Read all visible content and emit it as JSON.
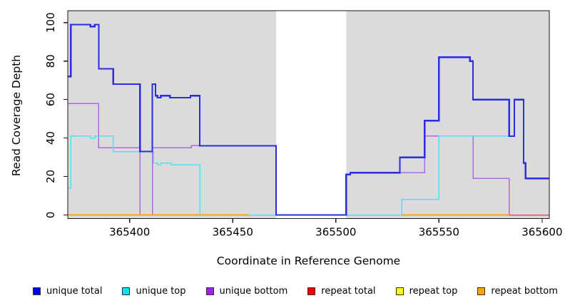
{
  "figure": {
    "x_axis_title": "Coordinate in Reference Genome",
    "y_axis_title": "Read Coverage Depth"
  },
  "chart_data": {
    "type": "line",
    "subtype": "step",
    "title": "",
    "xlabel": "Coordinate in Reference Genome",
    "ylabel": "Read Coverage Depth",
    "xlim": [
      365370,
      365603.5
    ],
    "ylim": [
      0,
      103
    ],
    "x_ticks": [
      365400,
      365450,
      365500,
      365550,
      365600
    ],
    "y_ticks": [
      0,
      20,
      40,
      60,
      80,
      100
    ],
    "grid": false,
    "legend_position": "bottom",
    "plot_background": "#DBDBDB",
    "background_regions": [
      [
        365370,
        365471
      ],
      [
        365505,
        365603.5
      ]
    ],
    "no_data_gap": [
      365471,
      365505
    ],
    "series": [
      {
        "name": "unique total",
        "color": "#2B2BE0",
        "width": 2.3,
        "segments": [
          {
            "points": [
              [
                365370,
                72
              ],
              [
                365371.5,
                99
              ],
              [
                365381,
                98
              ],
              [
                365383,
                99
              ],
              [
                365385,
                76
              ],
              [
                365392,
                68
              ],
              [
                365405,
                33
              ],
              [
                365411,
                68
              ],
              [
                365412.5,
                62
              ],
              [
                365413.5,
                61
              ],
              [
                365415,
                62
              ],
              [
                365419.5,
                61
              ],
              [
                365429.5,
                62
              ],
              [
                365434,
                36
              ],
              [
                365471,
                0
              ],
              [
                365505,
                21
              ],
              [
                365507,
                22
              ],
              [
                365531,
                30
              ],
              [
                365543,
                49
              ],
              [
                365550,
                82
              ],
              [
                365565,
                80
              ],
              [
                365566.5,
                60
              ],
              [
                365584,
                41
              ],
              [
                365586.5,
                60
              ],
              [
                365591,
                27
              ],
              [
                365592,
                19
              ]
            ],
            "end": 365603.5
          }
        ]
      },
      {
        "name": "unique top",
        "color": "#4FE3EE",
        "width": 1.5,
        "segments": [
          {
            "points": [
              [
                365370,
                14
              ],
              [
                365371.5,
                41
              ],
              [
                365381,
                40
              ],
              [
                365383,
                41
              ],
              [
                365392,
                33
              ],
              [
                365411.5,
                27
              ],
              [
                365413.5,
                26
              ],
              [
                365415,
                27
              ],
              [
                365420,
                26
              ],
              [
                365434,
                0
              ],
              [
                365532,
                8
              ],
              [
                365550,
                41
              ],
              [
                365586.5,
                60
              ],
              [
                365591,
                27
              ],
              [
                365592,
                19
              ]
            ],
            "end": 365603.5
          }
        ]
      },
      {
        "name": "unique bottom",
        "color": "#B465E2",
        "width": 1.5,
        "segments": [
          {
            "points": [
              [
                365370,
                58
              ],
              [
                365385,
                35
              ],
              [
                365405,
                0
              ],
              [
                365411,
                35
              ],
              [
                365430,
                36
              ],
              [
                365471,
                0
              ],
              [
                365505,
                21
              ],
              [
                365507,
                22
              ],
              [
                365543,
                41
              ],
              [
                365566.5,
                19
              ],
              [
                365584,
                0
              ]
            ],
            "end": 365603.5
          }
        ]
      },
      {
        "name": "repeat total",
        "color": "#E05070",
        "width": 1.5,
        "segments": [
          {
            "points": [
              [
                365370,
                0
              ]
            ],
            "end": 365458
          },
          {
            "points": [
              [
                365532,
                0
              ]
            ],
            "end": 365603.5
          }
        ]
      },
      {
        "name": "repeat top",
        "color": "#FFFF00",
        "width": 1.5,
        "segments": [
          {
            "points": [
              [
                365370,
                0
              ]
            ],
            "end": 365458
          },
          {
            "points": [
              [
                365532,
                0
              ]
            ],
            "end": 365584
          }
        ]
      },
      {
        "name": "repeat bottom",
        "color": "#FFA510",
        "width": 1.8,
        "segments": [
          {
            "points": [
              [
                365370,
                0
              ]
            ],
            "end": 365458
          },
          {
            "points": [
              [
                365532,
                0
              ]
            ],
            "end": 365584
          }
        ]
      }
    ],
    "legend": [
      {
        "label": "unique total",
        "color": "#0000EE"
      },
      {
        "label": "unique top",
        "color": "#00E5EE"
      },
      {
        "label": "unique bottom",
        "color": "#A020F0"
      },
      {
        "label": "repeat total",
        "color": "#EE0000"
      },
      {
        "label": "repeat top",
        "color": "#FFFF00"
      },
      {
        "label": "repeat bottom",
        "color": "#FFA500"
      }
    ]
  }
}
